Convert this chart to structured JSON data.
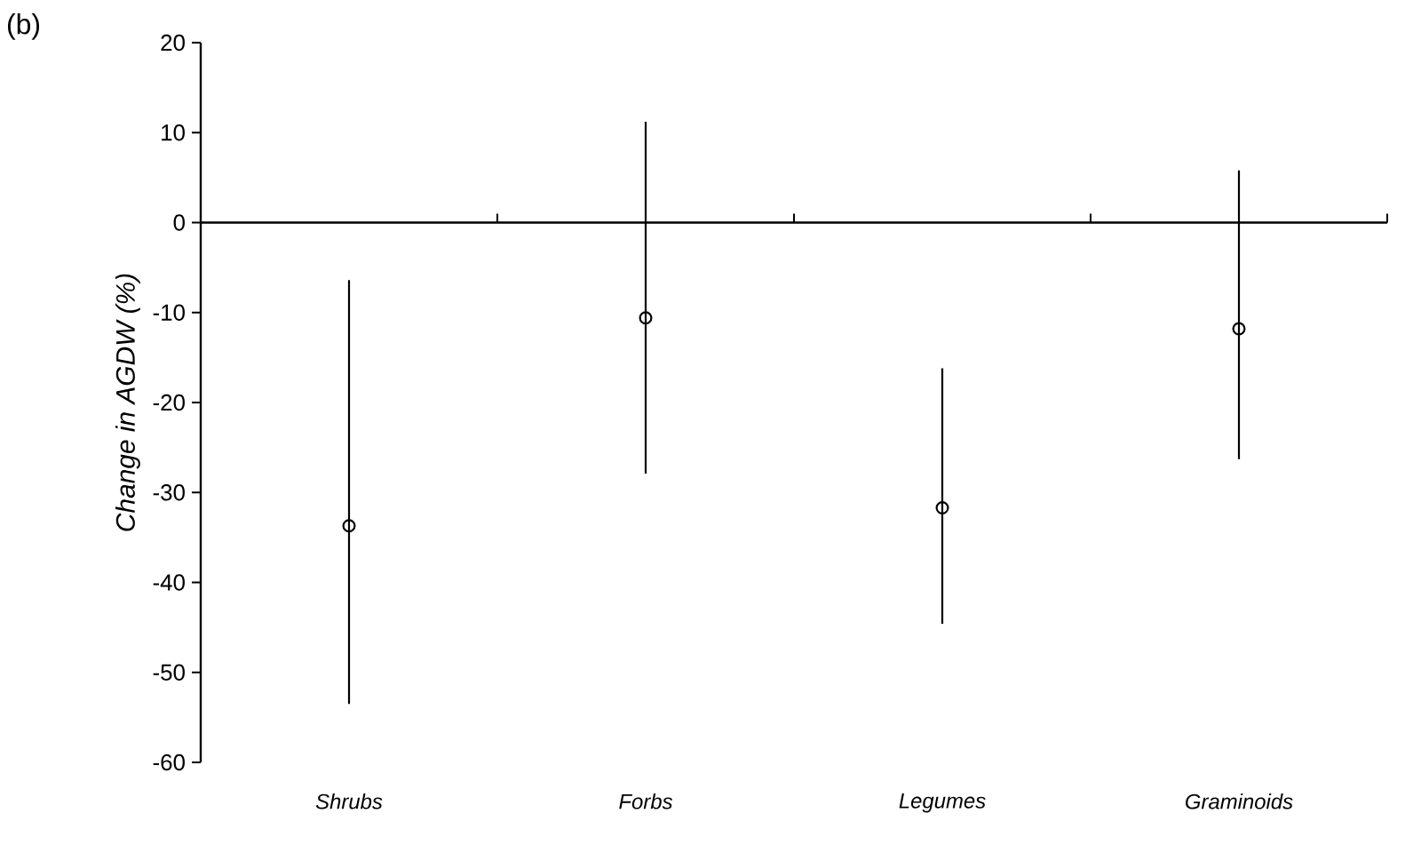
{
  "chart_data": {
    "type": "scatter",
    "categories": [
      "Shrubs",
      "Forbs",
      "Legumes",
      "Graminoids"
    ],
    "values": [
      -33.7,
      -10.6,
      -31.7,
      -11.8
    ],
    "errors": [
      [
        -53.5,
        -6.4
      ],
      [
        -27.9,
        11.2
      ],
      [
        -44.6,
        -16.2
      ],
      [
        -26.3,
        5.8
      ]
    ],
    "color": "#000000",
    "marker": "circle",
    "line_style": "solid",
    "ylim": [
      -60,
      20
    ],
    "yticks": [
      -60,
      -50,
      -40,
      -30,
      -20,
      -10,
      0,
      10,
      20
    ],
    "ylabel": "Change in AGDW (%)",
    "annotations": [
      "(b)"
    ]
  }
}
